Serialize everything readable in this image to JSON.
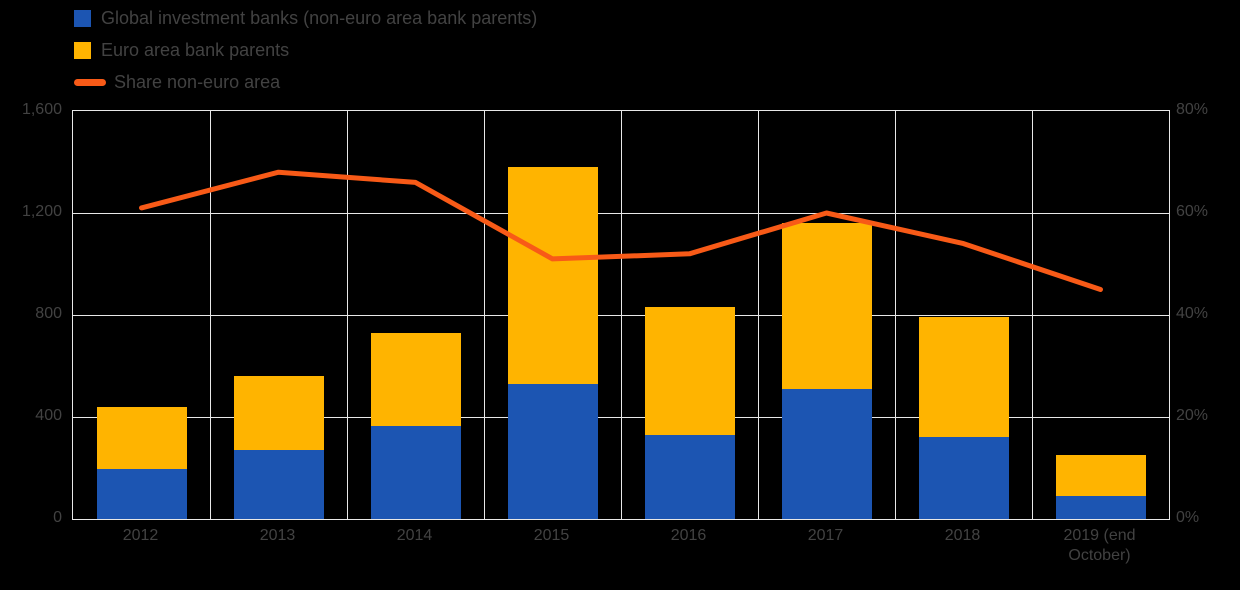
{
  "legend": {
    "items": [
      {
        "label": "Global investment banks (non-euro area bank parents)",
        "color": "#1c55b2",
        "shape": "square"
      },
      {
        "label": "Euro area bank parents",
        "color": "#ffb400",
        "shape": "square"
      },
      {
        "label": "Share non-euro area",
        "color": "#f85a17",
        "shape": "line"
      }
    ]
  },
  "chart_data": {
    "type": "bar",
    "subtype": "stacked-bar-with-line-overlay",
    "title": "",
    "grid": true,
    "legend_position": "top-left",
    "categories": [
      "2012",
      "2013",
      "2014",
      "2015",
      "2016",
      "2017",
      "2018",
      "2019 (end October)"
    ],
    "series": [
      {
        "name": "Global investment banks (non-euro area bank parents)",
        "type": "bar",
        "stack": true,
        "axis": "left",
        "color": "#1c55b2",
        "values": [
          195,
          270,
          365,
          530,
          330,
          510,
          320,
          90
        ]
      },
      {
        "name": "Euro area bank parents",
        "type": "bar",
        "stack": true,
        "axis": "left",
        "color": "#ffb400",
        "values": [
          245,
          290,
          365,
          850,
          500,
          650,
          470,
          160
        ]
      },
      {
        "name": "Share non-euro area",
        "type": "line",
        "axis": "right",
        "color": "#f85a17",
        "values": [
          61,
          68,
          66,
          51,
          52,
          60,
          54,
          45
        ]
      }
    ],
    "left_axis": {
      "min": 0,
      "max": 1600,
      "ticks": [
        "0",
        "400",
        "800",
        "1,200",
        "1,600"
      ]
    },
    "right_axis": {
      "min": 0,
      "max": 80,
      "ticks": [
        "0%",
        "20%",
        "40%",
        "60%",
        "80%"
      ]
    }
  }
}
